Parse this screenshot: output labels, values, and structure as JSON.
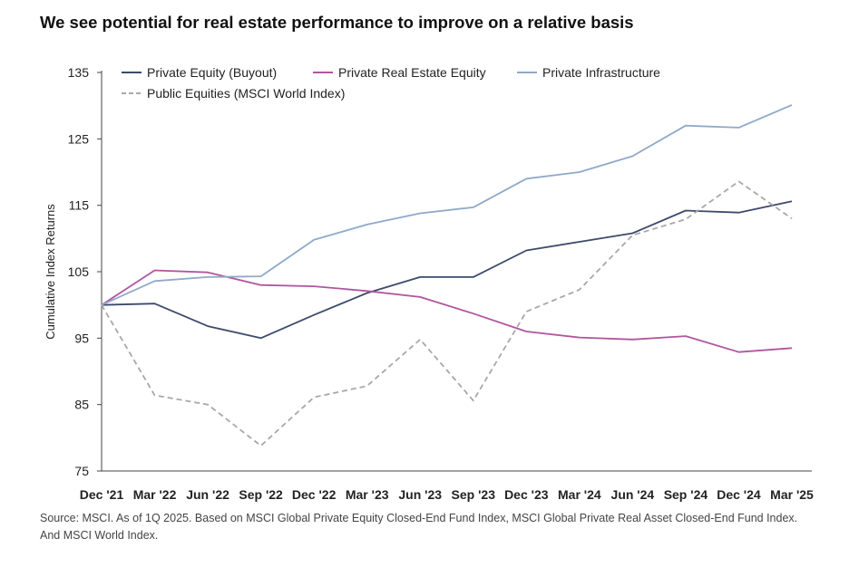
{
  "header": {
    "title": "We see potential for real estate performance to improve on a relative basis"
  },
  "footer": {
    "source": "Source: MSCI. As of 1Q 2025. Based on MSCI Global Private Equity Closed-End Fund Index, MSCI Global Private Real Asset Closed-End Fund Index. And MSCI World Index."
  },
  "chart_data": {
    "type": "line",
    "title": "We see potential for real estate performance to improve on a relative basis",
    "xlabel": "",
    "ylabel": "Cumulative Index Returns",
    "categories": [
      "Dec '21",
      "Mar '22",
      "Jun '22",
      "Sep '22",
      "Dec '22",
      "Mar '23",
      "Jun '23",
      "Sep '23",
      "Dec '23",
      "Mar '24",
      "Jun '24",
      "Sep '24",
      "Dec '24",
      "Mar '25"
    ],
    "ylim": [
      75,
      135
    ],
    "yticks": [
      75,
      85,
      95,
      105,
      115,
      125,
      135
    ],
    "grid": false,
    "legend": "top-left",
    "series": [
      {
        "name": "Private Equity (Buyout)",
        "color": "#3d4a6b",
        "dash": false,
        "values": [
          100,
          100.2,
          96.8,
          95.0,
          98.5,
          101.8,
          104.2,
          104.2,
          108.2,
          109.5,
          110.8,
          114.2,
          113.9,
          115.6
        ]
      },
      {
        "name": "Private Real Estate Equity",
        "color": "#b0569e",
        "dash": false,
        "values": [
          100,
          105.2,
          104.9,
          103.0,
          102.8,
          102.1,
          101.2,
          98.7,
          96.0,
          95.1,
          94.8,
          95.3,
          92.9,
          93.5
        ]
      },
      {
        "name": "Private Infrastructure",
        "color": "#8fa9c8",
        "dash": false,
        "values": [
          100,
          103.6,
          104.2,
          104.3,
          109.8,
          112.1,
          113.8,
          114.7,
          119.0,
          120.0,
          122.4,
          127.0,
          126.7,
          130.1
        ]
      },
      {
        "name": "Public Equities (MSCI World Index)",
        "color": "#a8a8a8",
        "dash": true,
        "values": [
          100,
          86.4,
          85.0,
          78.8,
          86.1,
          87.8,
          94.8,
          85.6,
          99.0,
          102.3,
          110.5,
          112.9,
          118.6,
          113.0
        ]
      }
    ]
  }
}
